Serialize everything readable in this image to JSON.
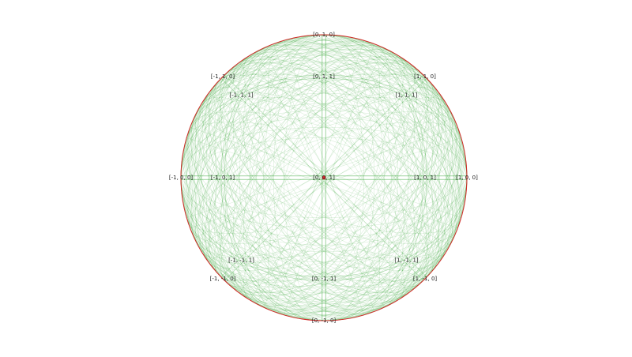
{
  "diagram": {
    "type": "orthographic pole figure with Kikuchi bands",
    "colors": {
      "outline": "#d62728",
      "bands": "#2ca02c",
      "center_marker": "#d62728",
      "label": "#222222"
    },
    "poles": [
      {
        "label": "[0, 1, 0]",
        "dir": [
          0,
          1,
          0
        ]
      },
      {
        "label": "[-1, 1, 0]",
        "dir": [
          -1,
          1,
          0
        ]
      },
      {
        "label": "[0, 1, 1]",
        "dir": [
          0,
          1,
          1
        ]
      },
      {
        "label": "[1, 1, 0]",
        "dir": [
          1,
          1,
          0
        ]
      },
      {
        "label": "[-1, 1, 1]",
        "dir": [
          -1,
          1,
          1
        ]
      },
      {
        "label": "[1, 1, 1]",
        "dir": [
          1,
          1,
          1
        ]
      },
      {
        "label": "[-1, 0, 0]",
        "dir": [
          -1,
          0,
          0
        ]
      },
      {
        "label": "[-1, 0, 1]",
        "dir": [
          -1,
          0,
          1
        ]
      },
      {
        "label": "[0, 0, 1]",
        "dir": [
          0,
          0,
          1
        ]
      },
      {
        "label": "[1, 0, 1]",
        "dir": [
          1,
          0,
          1
        ]
      },
      {
        "label": "[1, 0, 0]",
        "dir": [
          1,
          0,
          0
        ]
      },
      {
        "label": "[-1, -1, 1]",
        "dir": [
          -1,
          -1,
          1
        ]
      },
      {
        "label": "[1, -1, 1]",
        "dir": [
          1,
          -1,
          1
        ]
      },
      {
        "label": "[-1, -1, 0]",
        "dir": [
          -1,
          -1,
          0
        ]
      },
      {
        "label": "[0, -1, 1]",
        "dir": [
          0,
          -1,
          1
        ]
      },
      {
        "label": "[1, -1, 0]",
        "dir": [
          1,
          -1,
          0
        ]
      },
      {
        "label": "[0, -1, 0]",
        "dir": [
          0,
          -1,
          0
        ]
      }
    ],
    "band_max_index": 3
  }
}
